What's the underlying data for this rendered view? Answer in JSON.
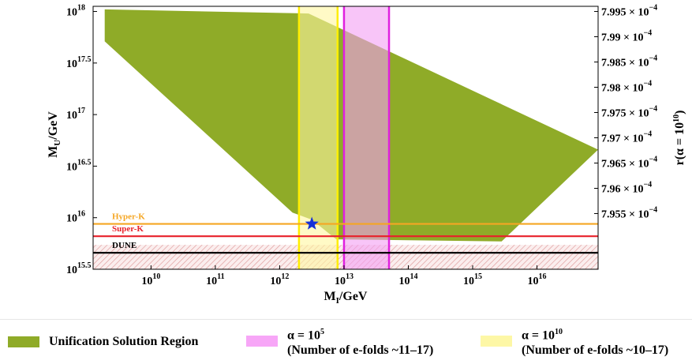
{
  "chart_data": {
    "type": "area",
    "x_axis": {
      "label_main": "M",
      "label_sub": "I",
      "label_unit": "/GeV",
      "scale": "log",
      "range": [
        9.1,
        16.95
      ],
      "ticks": [
        {
          "exp": 10,
          "base": "10",
          "sup": "10"
        },
        {
          "exp": 11,
          "base": "10",
          "sup": "11"
        },
        {
          "exp": 12,
          "base": "10",
          "sup": "12"
        },
        {
          "exp": 13,
          "base": "10",
          "sup": "13"
        },
        {
          "exp": 14,
          "base": "10",
          "sup": "14"
        },
        {
          "exp": 15,
          "base": "10",
          "sup": "15"
        },
        {
          "exp": 16,
          "base": "10",
          "sup": "16"
        }
      ]
    },
    "y_axis": {
      "label_main": "M",
      "label_sub": "U",
      "label_unit": "/GeV",
      "scale": "log",
      "range": [
        15.5,
        18.05
      ],
      "ticks": [
        {
          "exp": 18,
          "base": "10",
          "sup": "18"
        },
        {
          "exp": 17.5,
          "base": "10",
          "sup": "17.5"
        },
        {
          "exp": 17,
          "base": "10",
          "sup": "17"
        },
        {
          "exp": 16.5,
          "base": "10",
          "sup": "16.5"
        },
        {
          "exp": 16,
          "base": "10",
          "sup": "16"
        },
        {
          "exp": 15.5,
          "base": "10",
          "sup": "15.5"
        }
      ]
    },
    "y2_axis": {
      "label_main": "r(α = 10",
      "label_sup": "10",
      "label_end": ")",
      "ticks": [
        {
          "at": 18.0,
          "text": "7.995 × 10",
          "sup": "−4"
        },
        {
          "at": 17.755,
          "text": "7.99 × 10",
          "sup": "−4"
        },
        {
          "at": 17.51,
          "text": "7.985 × 10",
          "sup": "−4"
        },
        {
          "at": 17.265,
          "text": "7.98 × 10",
          "sup": "−4"
        },
        {
          "at": 17.02,
          "text": "7.975 × 10",
          "sup": "−4"
        },
        {
          "at": 16.775,
          "text": "7.97 × 10",
          "sup": "−4"
        },
        {
          "at": 16.53,
          "text": "7.965 × 10",
          "sup": "−4"
        },
        {
          "at": 16.285,
          "text": "7.96 × 10",
          "sup": "−4"
        },
        {
          "at": 16.04,
          "text": "7.955 × 10",
          "sup": "−4"
        }
      ]
    },
    "unification_region": {
      "color": "#8fab28",
      "log_points": [
        [
          9.28,
          18.02
        ],
        [
          12.45,
          17.98
        ],
        [
          16.95,
          16.66
        ],
        [
          15.45,
          15.77
        ],
        [
          12.88,
          15.79
        ],
        [
          12.5,
          15.98
        ],
        [
          12.2,
          16.05
        ],
        [
          9.28,
          17.71
        ]
      ]
    },
    "bands": [
      {
        "name": "α = 10⁵",
        "x_from": 13.0,
        "x_to": 13.7,
        "fill": "#f39ff3",
        "opacity": 0.6,
        "edge": "#e020e0"
      },
      {
        "name": "α = 10¹⁰",
        "x_from": 12.3,
        "x_to": 12.9,
        "fill": "#fff7a0",
        "opacity": 0.6,
        "edge": "#ffee00"
      }
    ],
    "horizontal_lines": [
      {
        "label": "Hyper-K",
        "y": 15.94,
        "color": "#f5a623"
      },
      {
        "label": "Super-K",
        "y": 15.82,
        "color": "#e8212a"
      },
      {
        "label": "DUNE",
        "y": 15.66,
        "color": "#000000"
      }
    ],
    "star": {
      "x": 12.5,
      "y": 15.94,
      "color": "#1530d8"
    },
    "legend": [
      {
        "label": "Unification Solution Region",
        "color": "#8fab28"
      },
      {
        "label_pre": "α = 10",
        "label_sup": "5",
        "label_line2": "(Number of e-folds ~11–17)",
        "color": "#f7a6f7"
      },
      {
        "label_pre": "α = 10",
        "label_sup": "10",
        "label_line2": "(Number of e-folds ~10–17)",
        "color": "#fdf7a6"
      }
    ]
  }
}
